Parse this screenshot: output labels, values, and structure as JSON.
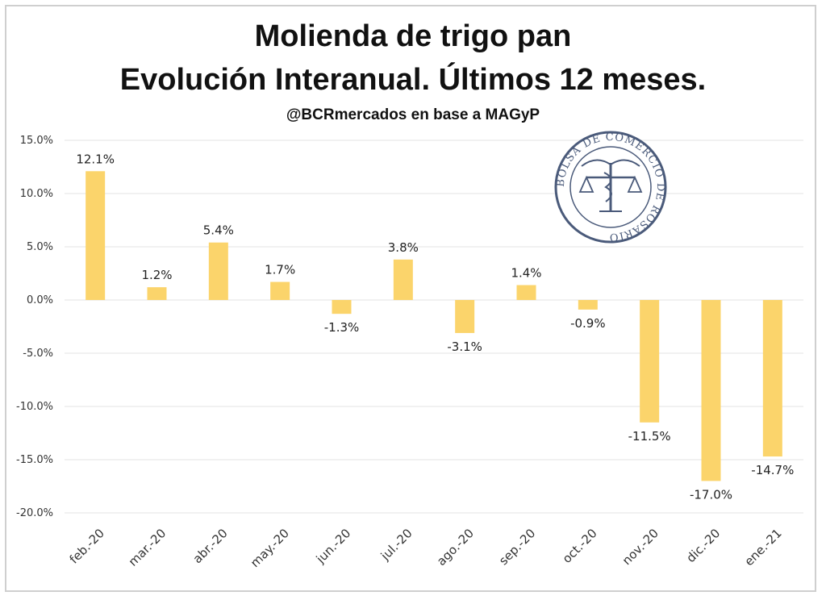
{
  "chart_data": {
    "type": "bar",
    "title": "Molienda de trigo pan",
    "subtitle_line": "Evolución Interanual. Últimos 12 meses.",
    "source": "@BCRmercados en base a MAGyP",
    "categories": [
      "feb.-20",
      "mar.-20",
      "abr.-20",
      "may.-20",
      "jun.-20",
      "jul.-20",
      "ago.-20",
      "sep.-20",
      "oct.-20",
      "nov.-20",
      "dic.-20",
      "ene.-21"
    ],
    "values": [
      12.1,
      1.2,
      5.4,
      1.7,
      -1.3,
      3.8,
      -3.1,
      1.4,
      -0.9,
      -11.5,
      -17.0,
      -14.7
    ],
    "data_labels": [
      "12.1%",
      "1.2%",
      "5.4%",
      "1.7%",
      "-1.3%",
      "3.8%",
      "-3.1%",
      "1.4%",
      "-0.9%",
      "-11.5%",
      "-17.0%",
      "-14.7%"
    ],
    "yticks": [
      15,
      10,
      5,
      0,
      -5,
      -10,
      -15,
      -20
    ],
    "ytick_labels": [
      "15.0%",
      "10.0%",
      "5.0%",
      "0.0%",
      "-5.0%",
      "-10.0%",
      "-15.0%",
      "-20.0%"
    ],
    "ylim": [
      -20,
      15
    ],
    "grid": true,
    "bar_color": "#FBD46B",
    "xlabel": "",
    "ylabel": ""
  },
  "watermark": {
    "text": "BOLSA DE COMERCIO DE ROSARIO",
    "color": "#4a5a7a"
  }
}
